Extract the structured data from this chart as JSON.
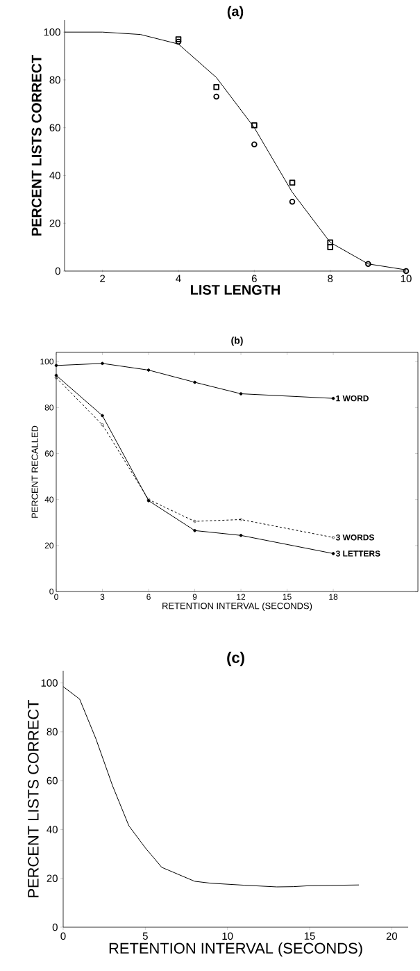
{
  "chart_data": [
    {
      "type": "scatter",
      "title": "(a)",
      "xlabel": "LIST LENGTH",
      "ylabel": "PERCENT LISTS CORRECT",
      "xlim": [
        1,
        10
      ],
      "ylim": [
        0,
        105
      ],
      "xticks": [
        2,
        4,
        6,
        8,
        10
      ],
      "yticks": [
        0,
        20,
        40,
        60,
        80,
        100
      ],
      "legend": false,
      "series": [
        {
          "type": "line",
          "color": "#000000",
          "marker": "none",
          "line_style": "solid",
          "x": [
            1,
            2,
            3,
            4,
            5,
            6,
            7,
            8,
            9,
            10
          ],
          "values": [
            100,
            100,
            99,
            95,
            81,
            60,
            33,
            12,
            3,
            0.5
          ]
        },
        {
          "type": "scatter",
          "color": "#000000",
          "marker": "square",
          "x": [
            4,
            5,
            6,
            7,
            8,
            8
          ],
          "values": [
            97,
            77,
            61,
            37,
            12,
            10
          ]
        },
        {
          "type": "scatter",
          "color": "#000000",
          "marker": "circle",
          "x": [
            4,
            5,
            6,
            7,
            8,
            9,
            10
          ],
          "values": [
            96,
            73,
            53,
            29,
            null,
            3,
            0
          ]
        }
      ]
    },
    {
      "type": "line",
      "title": "(b)",
      "xlabel": "RETENTION  INTERVAL (SECONDS)",
      "ylabel": "PERCENT   RECALLED",
      "xlim": [
        0,
        23.5
      ],
      "ylim": [
        0,
        104
      ],
      "xticks": [
        0,
        3,
        6,
        9,
        12,
        15,
        18
      ],
      "yticks": [
        0,
        20,
        40,
        60,
        80,
        100
      ],
      "legend": "right",
      "series": [
        {
          "name": "1 WORD",
          "color": "#000000",
          "marker": "circle",
          "line_style": "solid",
          "x": [
            0,
            3,
            6,
            9,
            12,
            18
          ],
          "values": [
            98.3,
            99.2,
            96.3,
            91,
            86,
            84
          ]
        },
        {
          "name": "3 WORDS",
          "color": "#000000",
          "marker": "circle",
          "line_style": "dashed",
          "x": [
            0,
            3,
            6,
            9,
            12,
            18
          ],
          "values": [
            93,
            72.5,
            40,
            30.5,
            31.3,
            23.5
          ]
        },
        {
          "name": "3 LETTERS",
          "color": "#000000",
          "marker": "circle",
          "line_style": "solid",
          "x": [
            0,
            3,
            6,
            9,
            12,
            18
          ],
          "values": [
            94,
            76.5,
            39.5,
            26.5,
            24.4,
            16.5
          ]
        }
      ]
    },
    {
      "type": "line",
      "title": "(c)",
      "xlabel": "RETENTION INTERVAL (SECONDS)",
      "ylabel": "PERCENT LISTS CORRECT",
      "xlim": [
        0,
        21
      ],
      "ylim": [
        0,
        105
      ],
      "xticks": [
        0,
        5,
        10,
        15,
        20
      ],
      "yticks": [
        0,
        20,
        40,
        60,
        80,
        100
      ],
      "legend": false,
      "series": [
        {
          "color": "#000000",
          "marker": "none",
          "line_style": "solid",
          "x": [
            0,
            1,
            2,
            3,
            4,
            5,
            6,
            8,
            9,
            11,
            13,
            14,
            15,
            18
          ],
          "values": [
            98.5,
            93.4,
            77,
            58,
            41.5,
            32.5,
            24.5,
            18.8,
            18,
            17.2,
            16.5,
            16.6,
            17,
            17.3
          ]
        }
      ]
    }
  ]
}
